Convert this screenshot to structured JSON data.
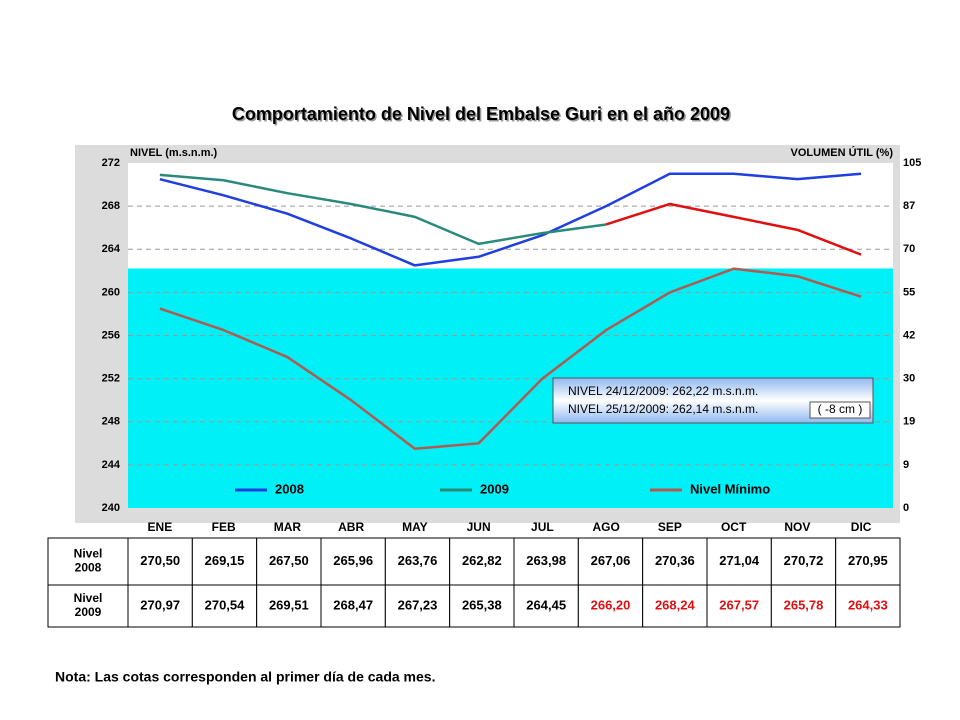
{
  "chart_data": {
    "type": "line",
    "title": "Comportamiento de Nivel del Embalse Guri en el año 2009",
    "y_label": "NIVEL (m.s.n.m.)",
    "y2_label": "VOLUMEN ÚTIL (%)",
    "categories": [
      "ENE",
      "FEB",
      "MAR",
      "ABR",
      "MAY",
      "JUN",
      "JUL",
      "AGO",
      "SEP",
      "OCT",
      "NOV",
      "DIC"
    ],
    "ylim": [
      240,
      272
    ],
    "yticks": [
      240,
      244,
      248,
      252,
      256,
      260,
      264,
      268,
      272
    ],
    "volume_labels": [
      "0",
      "9",
      "19",
      "30",
      "42",
      "55",
      "70",
      "87",
      "105"
    ],
    "grid": true,
    "shaded_level": 262.22,
    "shaded_color": "#00f0f8",
    "series": [
      {
        "name": "2008",
        "color": "#1f3fe0",
        "values": [
          270.5,
          269.0,
          267.3,
          265.0,
          262.5,
          263.3,
          265.3,
          268.0,
          271.0,
          271.0,
          270.5,
          271.0
        ]
      },
      {
        "name": "2009",
        "color": "#2a8a7a",
        "values": [
          270.9,
          270.4,
          269.2,
          268.2,
          267.0,
          264.5,
          265.5,
          266.3,
          null,
          null,
          null,
          null
        ]
      },
      {
        "color": "#e01010",
        "values": [
          null,
          null,
          null,
          null,
          null,
          null,
          null,
          266.3,
          268.2,
          267.0,
          265.8,
          263.5
        ]
      },
      {
        "name": "Nivel Mínimo",
        "color": "#b05a50",
        "values": [
          258.5,
          256.5,
          254.0,
          250.0,
          245.5,
          246.0,
          252.0,
          256.5,
          260.0,
          262.2,
          261.5,
          259.6
        ]
      }
    ],
    "annotations": [
      "NIVEL 24/12/2009: 262,22 m.s.n.m.",
      "NIVEL 25/12/2009: 262,14 m.s.n.m.",
      "( -8 cm )"
    ]
  },
  "table": {
    "rows": [
      {
        "label": [
          "Nivel",
          "2008"
        ],
        "cells": [
          "270,50",
          "269,15",
          "267,50",
          "265,96",
          "263,76",
          "262,82",
          "263,98",
          "267,06",
          "270,36",
          "271,04",
          "270,72",
          "270,95"
        ],
        "colors": [
          "#000",
          "#000",
          "#000",
          "#000",
          "#000",
          "#000",
          "#000",
          "#000",
          "#000",
          "#000",
          "#000",
          "#000"
        ]
      },
      {
        "label": [
          "Nivel",
          "2009"
        ],
        "cells": [
          "270,97",
          "270,54",
          "269,51",
          "268,47",
          "267,23",
          "265,38",
          "264,45",
          "266,20",
          "268,24",
          "267,57",
          "265,78",
          "264,33"
        ],
        "colors": [
          "#000",
          "#000",
          "#000",
          "#000",
          "#000",
          "#000",
          "#000",
          "#e01010",
          "#e01010",
          "#e01010",
          "#e01010",
          "#e01010"
        ]
      }
    ]
  },
  "note": "Nota: Las cotas corresponden al primer día de cada mes."
}
